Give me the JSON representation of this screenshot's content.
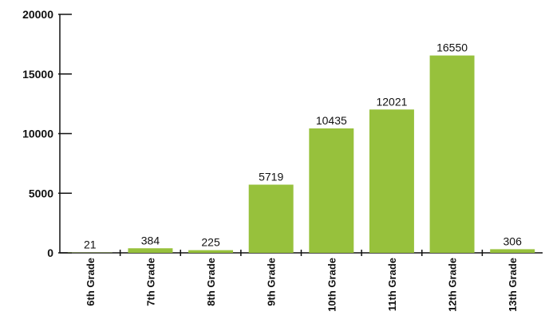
{
  "chart_data": {
    "type": "bar",
    "categories": [
      "6th Grade",
      "7th Grade",
      "8th Grade",
      "9th Grade",
      "10th Grade",
      "11th Grade",
      "12th Grade",
      "13th Grade"
    ],
    "values": [
      21,
      384,
      225,
      5719,
      10435,
      12021,
      16550,
      306
    ],
    "color": "#97c13c",
    "ylim": [
      0,
      20000
    ],
    "yticks": [
      0,
      5000,
      10000,
      15000,
      20000
    ],
    "grid": false
  }
}
